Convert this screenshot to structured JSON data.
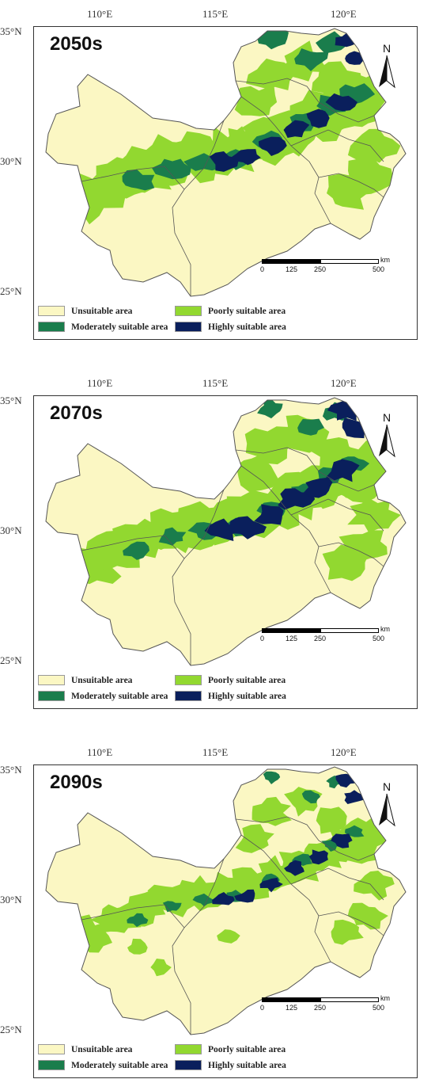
{
  "map_panels": [
    {
      "period": "2050s",
      "highly_extent": "high",
      "moderate_extent": "high"
    },
    {
      "period": "2070s",
      "highly_extent": "very-high",
      "moderate_extent": "medium"
    },
    {
      "period": "2090s",
      "highly_extent": "medium",
      "moderate_extent": "low"
    }
  ],
  "axes": {
    "lon_ticks": [
      "110°E",
      "115°E",
      "120°E"
    ],
    "lat_ticks": [
      "35°N",
      "30°N",
      "25°N"
    ]
  },
  "legend": {
    "unsuitable": "Unsuitable area",
    "poorly": "Poorly suitable area",
    "moderately": "Moderately suitable area",
    "highly": "Highly suitable area"
  },
  "scale_bar": {
    "labels": [
      "0",
      "125",
      "250",
      "500"
    ],
    "unit": "km"
  },
  "north_label": "N",
  "colors": {
    "unsuitable": "#fbf7c3",
    "poorly": "#92d830",
    "moderately": "#1a7d4c",
    "highly": "#0a1f5c",
    "border": "#555555"
  }
}
